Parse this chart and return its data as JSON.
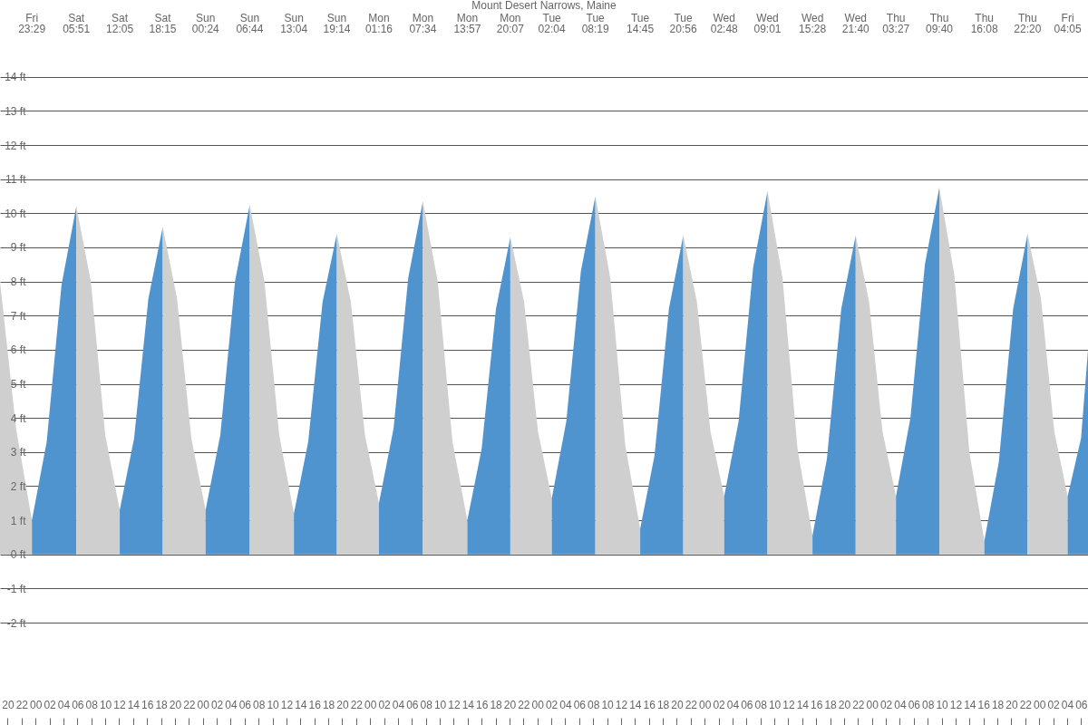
{
  "chart_data": {
    "type": "area",
    "title": "Mount Desert Narrows, Maine",
    "series": [
      {
        "color": "#cfcfcf",
        "x": [
          18.9,
          21.2,
          23.48
        ],
        "values": [
          8.0,
          3.7,
          1.0
        ]
      },
      {
        "color": "#4f94cf",
        "x": [
          23.48,
          25.6,
          27.73,
          29.85
        ],
        "values": [
          1.0,
          3.3,
          7.9,
          10.2
        ]
      },
      {
        "color": "#cfcfcf",
        "x": [
          29.85,
          31.93,
          34.0,
          36.08
        ],
        "values": [
          10.2,
          8.0,
          3.5,
          1.3
        ]
      },
      {
        "color": "#4f94cf",
        "x": [
          36.08,
          38.14,
          40.19,
          42.25
        ],
        "values": [
          1.3,
          3.4,
          7.5,
          9.6
        ]
      },
      {
        "color": "#cfcfcf",
        "x": [
          42.25,
          44.3,
          46.35,
          48.4
        ],
        "values": [
          9.6,
          7.5,
          3.4,
          1.3
        ]
      },
      {
        "color": "#4f94cf",
        "x": [
          48.4,
          50.51,
          52.62,
          54.73
        ],
        "values": [
          1.3,
          3.5,
          8.0,
          10.25
        ]
      },
      {
        "color": "#cfcfcf",
        "x": [
          54.73,
          56.84,
          58.96,
          61.07
        ],
        "values": [
          10.25,
          8.0,
          3.5,
          1.2
        ]
      },
      {
        "color": "#4f94cf",
        "x": [
          61.07,
          63.12,
          65.18,
          67.23
        ],
        "values": [
          1.2,
          3.3,
          7.4,
          9.4
        ]
      },
      {
        "color": "#cfcfcf",
        "x": [
          67.23,
          69.24,
          71.26,
          73.27
        ],
        "values": [
          9.4,
          7.4,
          3.5,
          1.5
        ]
      },
      {
        "color": "#4f94cf",
        "x": [
          73.27,
          75.37,
          77.47,
          79.57
        ],
        "values": [
          1.5,
          3.7,
          8.1,
          10.35
        ]
      },
      {
        "color": "#cfcfcf",
        "x": [
          79.57,
          81.7,
          83.82,
          85.95
        ],
        "values": [
          10.35,
          8.0,
          3.3,
          1.0
        ]
      },
      {
        "color": "#4f94cf",
        "x": [
          85.95,
          88.01,
          90.06,
          92.12
        ],
        "values": [
          1.0,
          3.1,
          7.2,
          9.3
        ]
      },
      {
        "color": "#cfcfcf",
        "x": [
          92.12,
          94.1,
          96.09,
          98.07
        ],
        "values": [
          9.3,
          7.4,
          3.6,
          1.65
        ]
      },
      {
        "color": "#4f94cf",
        "x": [
          98.07,
          100.15,
          102.24,
          104.32
        ],
        "values": [
          1.65,
          3.9,
          8.3,
          10.5
        ]
      },
      {
        "color": "#cfcfcf",
        "x": [
          104.32,
          106.46,
          108.61,
          110.75
        ],
        "values": [
          10.5,
          8.1,
          3.2,
          0.75
        ]
      },
      {
        "color": "#4f94cf",
        "x": [
          110.75,
          112.81,
          114.87,
          116.93
        ],
        "values": [
          0.75,
          2.9,
          7.2,
          9.35
        ]
      },
      {
        "color": "#cfcfcf",
        "x": [
          116.93,
          118.89,
          120.84,
          122.8
        ],
        "values": [
          9.35,
          7.4,
          3.6,
          1.7
        ]
      },
      {
        "color": "#4f94cf",
        "x": [
          122.8,
          124.87,
          126.95,
          129.02
        ],
        "values": [
          1.7,
          3.9,
          8.4,
          10.65
        ]
      },
      {
        "color": "#cfcfcf",
        "x": [
          129.02,
          131.17,
          133.32,
          135.47
        ],
        "values": [
          10.65,
          8.1,
          3.1,
          0.55
        ]
      },
      {
        "color": "#4f94cf",
        "x": [
          135.47,
          137.54,
          139.6,
          141.67
        ],
        "values": [
          0.55,
          2.8,
          7.2,
          9.35
        ]
      },
      {
        "color": "#cfcfcf",
        "x": [
          141.67,
          143.6,
          145.52,
          147.45
        ],
        "values": [
          9.35,
          7.4,
          3.6,
          1.7
        ]
      },
      {
        "color": "#4f94cf",
        "x": [
          147.45,
          149.52,
          151.6,
          153.67
        ],
        "values": [
          1.7,
          4.0,
          8.5,
          10.75
        ]
      },
      {
        "color": "#cfcfcf",
        "x": [
          153.67,
          155.82,
          157.98,
          160.13
        ],
        "values": [
          10.75,
          8.2,
          3.0,
          0.4
        ]
      },
      {
        "color": "#4f94cf",
        "x": [
          160.13,
          162.2,
          164.26,
          166.33
        ],
        "values": [
          0.4,
          2.7,
          7.2,
          9.4
        ]
      },
      {
        "color": "#cfcfcf",
        "x": [
          166.33,
          168.25,
          170.17,
          172.08
        ],
        "values": [
          9.4,
          7.5,
          3.6,
          1.7
        ]
      },
      {
        "color": "#4f94cf",
        "x": [
          172.08,
          174.0,
          175.0
        ],
        "values": [
          1.7,
          3.4,
          6.0
        ]
      }
    ],
    "xlim": [
      18.9,
      175.0
    ],
    "xticks": [
      {
        "value": 20,
        "label": "20"
      },
      {
        "value": 22,
        "label": "22"
      },
      {
        "value": 24,
        "label": "00"
      },
      {
        "value": 26,
        "label": "02"
      },
      {
        "value": 28,
        "label": "04"
      },
      {
        "value": 30,
        "label": "06"
      },
      {
        "value": 32,
        "label": "08"
      },
      {
        "value": 34,
        "label": "10"
      },
      {
        "value": 36,
        "label": "12"
      },
      {
        "value": 38,
        "label": "14"
      },
      {
        "value": 40,
        "label": "16"
      },
      {
        "value": 42,
        "label": "18"
      },
      {
        "value": 44,
        "label": "20"
      },
      {
        "value": 46,
        "label": "22"
      },
      {
        "value": 48,
        "label": "00"
      },
      {
        "value": 50,
        "label": "02"
      },
      {
        "value": 52,
        "label": "04"
      },
      {
        "value": 54,
        "label": "06"
      },
      {
        "value": 56,
        "label": "08"
      },
      {
        "value": 58,
        "label": "10"
      },
      {
        "value": 60,
        "label": "12"
      },
      {
        "value": 62,
        "label": "14"
      },
      {
        "value": 64,
        "label": "16"
      },
      {
        "value": 66,
        "label": "18"
      },
      {
        "value": 68,
        "label": "20"
      },
      {
        "value": 70,
        "label": "22"
      },
      {
        "value": 72,
        "label": "00"
      },
      {
        "value": 74,
        "label": "02"
      },
      {
        "value": 76,
        "label": "04"
      },
      {
        "value": 78,
        "label": "06"
      },
      {
        "value": 80,
        "label": "08"
      },
      {
        "value": 82,
        "label": "10"
      },
      {
        "value": 84,
        "label": "12"
      },
      {
        "value": 86,
        "label": "14"
      },
      {
        "value": 88,
        "label": "16"
      },
      {
        "value": 90,
        "label": "18"
      },
      {
        "value": 92,
        "label": "20"
      },
      {
        "value": 94,
        "label": "22"
      },
      {
        "value": 96,
        "label": "00"
      },
      {
        "value": 98,
        "label": "02"
      },
      {
        "value": 100,
        "label": "04"
      },
      {
        "value": 102,
        "label": "06"
      },
      {
        "value": 104,
        "label": "08"
      },
      {
        "value": 106,
        "label": "10"
      },
      {
        "value": 108,
        "label": "12"
      },
      {
        "value": 110,
        "label": "14"
      },
      {
        "value": 112,
        "label": "16"
      },
      {
        "value": 114,
        "label": "18"
      },
      {
        "value": 116,
        "label": "20"
      },
      {
        "value": 118,
        "label": "22"
      },
      {
        "value": 120,
        "label": "00"
      },
      {
        "value": 122,
        "label": "02"
      },
      {
        "value": 124,
        "label": "04"
      },
      {
        "value": 126,
        "label": "06"
      },
      {
        "value": 128,
        "label": "08"
      },
      {
        "value": 130,
        "label": "10"
      },
      {
        "value": 132,
        "label": "12"
      },
      {
        "value": 134,
        "label": "14"
      },
      {
        "value": 136,
        "label": "16"
      },
      {
        "value": 138,
        "label": "18"
      },
      {
        "value": 140,
        "label": "20"
      },
      {
        "value": 142,
        "label": "22"
      },
      {
        "value": 144,
        "label": "00"
      },
      {
        "value": 146,
        "label": "02"
      },
      {
        "value": 148,
        "label": "04"
      },
      {
        "value": 150,
        "label": "06"
      },
      {
        "value": 152,
        "label": "08"
      },
      {
        "value": 154,
        "label": "10"
      },
      {
        "value": 156,
        "label": "12"
      },
      {
        "value": 158,
        "label": "14"
      },
      {
        "value": 160,
        "label": "16"
      },
      {
        "value": 162,
        "label": "18"
      },
      {
        "value": 164,
        "label": "20"
      },
      {
        "value": 166,
        "label": "22"
      },
      {
        "value": 168,
        "label": "00"
      },
      {
        "value": 170,
        "label": "02"
      },
      {
        "value": 172,
        "label": "04"
      },
      {
        "value": 174,
        "label": "06"
      }
    ],
    "annotations": [
      "Fri 23:29",
      "Sat 05:51",
      "Sat 12:05",
      "Sat 18:15",
      "Sun 00:24",
      "Sun 06:44",
      "Sun 13:04",
      "Sun 19:14",
      "Mon 01:16",
      "Mon 07:34",
      "Mon 13:57",
      "Mon 20:07",
      "Tue 02:04",
      "Tue 08:19",
      "Tue 14:45",
      "Tue 20:56",
      "Wed 02:48",
      "Wed 09:01",
      "Wed 15:28",
      "Wed 21:40",
      "Thu 03:27",
      "Thu 09:40",
      "Thu 16:08",
      "Thu 22:20",
      "Fri 04:05"
    ],
    "ylim": [
      -5,
      16.25
    ],
    "yticks": [
      {
        "value": -2,
        "label": "-2 ft"
      },
      {
        "value": -1,
        "label": "-1 ft"
      },
      {
        "value": 0,
        "label": "0 ft"
      },
      {
        "value": 1,
        "label": "1 ft"
      },
      {
        "value": 2,
        "label": "2 ft"
      },
      {
        "value": 3,
        "label": "3 ft"
      },
      {
        "value": 4,
        "label": "4 ft"
      },
      {
        "value": 5,
        "label": "5 ft"
      },
      {
        "value": 6,
        "label": "6 ft"
      },
      {
        "value": 7,
        "label": "7 ft"
      },
      {
        "value": 8,
        "label": "8 ft"
      },
      {
        "value": 9,
        "label": "9 ft"
      },
      {
        "value": 10,
        "label": "10 ft"
      },
      {
        "value": 11,
        "label": "11 ft"
      },
      {
        "value": 12,
        "label": "12 ft"
      },
      {
        "value": 13,
        "label": "13 ft"
      },
      {
        "value": 14,
        "label": "14 ft"
      }
    ],
    "grid": "y"
  }
}
